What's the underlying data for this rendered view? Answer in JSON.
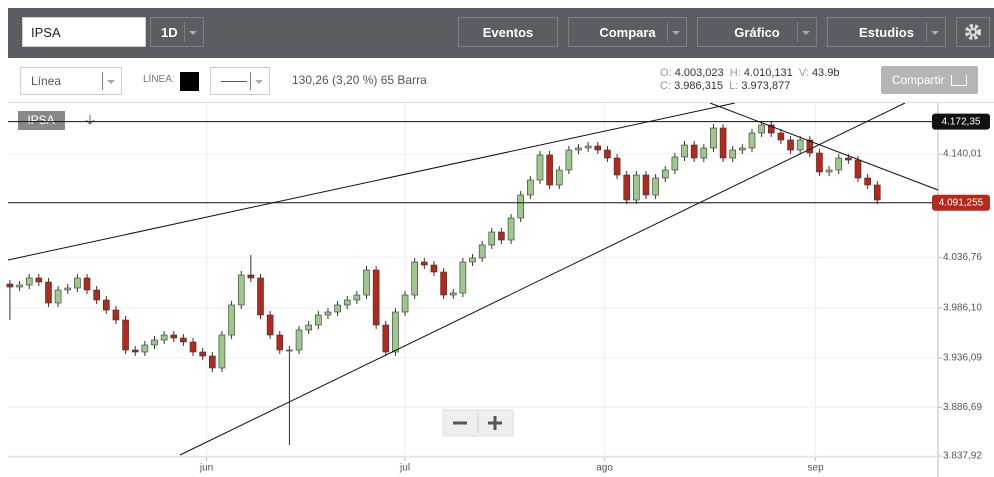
{
  "toolbar": {
    "symbol": "IPSA",
    "interval": "1D",
    "buttons": [
      "Eventos",
      "Compara",
      "Gráfico",
      "Estudios"
    ]
  },
  "options": {
    "chart_style": "Línea",
    "line_label": "LÍNEA:",
    "change": "130,26 (3,20 %) 65 Barra",
    "share": "Compartir"
  },
  "quote": {
    "o_label": "O:",
    "o": "4.003,023",
    "h_label": "H:",
    "h": "4.010,131",
    "v_label": "V:",
    "v": "43.9b",
    "c_label": "C:",
    "c": "3.986,315",
    "l_label": "L:",
    "l": "3.973,877"
  },
  "chart_data": {
    "type": "candlestick",
    "symbol": "IPSA",
    "open": [
      4010,
      4007,
      4009,
      4016,
      4012,
      3991,
      4004,
      4006,
      4016,
      4004,
      3994,
      3984,
      3974,
      3944,
      3942,
      3949,
      3954,
      3959,
      3956,
      3952,
      3942,
      3938,
      3926,
      3959,
      3989,
      4019,
      4016,
      3979,
      3959,
      3944,
      3944,
      3964,
      3969,
      3979,
      3982,
      3989,
      3994,
      3999,
      4024,
      3969,
      3942,
      3982,
      3999,
      4032,
      4029,
      4022,
      3999,
      4001,
      4032,
      4036,
      4049,
      4062,
      4054,
      4076,
      4099,
      4114,
      4139,
      4109,
      4124,
      4144,
      4146,
      4148,
      4144,
      4136,
      4119,
      4094,
      4119,
      4099,
      4116,
      4124,
      4137,
      4149,
      4136,
      4146,
      4166,
      4136,
      4144,
      4146,
      4161,
      4169,
      4161,
      4154,
      4144,
      4154,
      4141,
      4122,
      4124,
      4136,
      4134,
      4116,
      4109
    ],
    "high": [
      4014,
      4013,
      4020,
      4020,
      4016,
      4008,
      4010,
      4020,
      4020,
      4008,
      3998,
      3988,
      3978,
      3948,
      3953,
      3958,
      3963,
      3963,
      3960,
      3956,
      3946,
      3942,
      3963,
      3993,
      4023,
      4039,
      4020,
      3983,
      3963,
      3948,
      3968,
      3973,
      3983,
      3986,
      3993,
      3998,
      4003,
      4028,
      4028,
      3973,
      3986,
      4003,
      4036,
      4036,
      4033,
      4026,
      4005,
      4036,
      4040,
      4053,
      4066,
      4066,
      4080,
      4103,
      4118,
      4143,
      4143,
      4128,
      4148,
      4150,
      4152,
      4152,
      4148,
      4140,
      4123,
      4123,
      4123,
      4120,
      4128,
      4141,
      4153,
      4153,
      4150,
      4170,
      4170,
      4148,
      4150,
      4165,
      4173,
      4173,
      4165,
      4158,
      4158,
      4158,
      4145,
      4128,
      4140,
      4140,
      4138,
      4120,
      4113
    ],
    "low": [
      3974,
      4003,
      4005,
      4008,
      3987,
      3987,
      4000,
      4002,
      4000,
      3990,
      3980,
      3970,
      3940,
      3938,
      3938,
      3945,
      3950,
      3952,
      3948,
      3938,
      3934,
      3922,
      3922,
      3955,
      3985,
      4012,
      3975,
      3955,
      3940,
      3849,
      3940,
      3960,
      3965,
      3975,
      3978,
      3985,
      3990,
      3995,
      3965,
      3938,
      3938,
      3978,
      3995,
      4025,
      4018,
      3995,
      3995,
      3997,
      4028,
      4032,
      4045,
      4050,
      4050,
      4072,
      4095,
      4110,
      4105,
      4105,
      4120,
      4140,
      4142,
      4140,
      4132,
      4115,
      4090,
      4090,
      4095,
      4095,
      4112,
      4120,
      4133,
      4132,
      4132,
      4142,
      4132,
      4132,
      4140,
      4142,
      4157,
      4157,
      4150,
      4140,
      4140,
      4137,
      4118,
      4118,
      4120,
      4130,
      4112,
      4105,
      4090
    ],
    "close": [
      4007,
      4009,
      4016,
      4012,
      3991,
      4004,
      4006,
      4016,
      4004,
      3994,
      3984,
      3974,
      3944,
      3942,
      3949,
      3954,
      3959,
      3956,
      3952,
      3942,
      3938,
      3926,
      3959,
      3989,
      4019,
      4016,
      3979,
      3959,
      3944,
      3944,
      3964,
      3969,
      3979,
      3982,
      3989,
      3994,
      3999,
      4024,
      3969,
      3942,
      3982,
      3999,
      4032,
      4029,
      4022,
      3999,
      4001,
      4032,
      4036,
      4049,
      4062,
      4054,
      4076,
      4099,
      4114,
      4139,
      4109,
      4124,
      4144,
      4146,
      4148,
      4144,
      4136,
      4119,
      4094,
      4119,
      4099,
      4116,
      4124,
      4137,
      4149,
      4136,
      4146,
      4166,
      4136,
      4144,
      4146,
      4161,
      4169,
      4161,
      4154,
      4144,
      4154,
      4141,
      4122,
      4124,
      4136,
      4134,
      4116,
      4109,
      4094
    ],
    "up_color": "#9cc98a",
    "down_color": "#b5281a",
    "xlim": [
      -0.2,
      96.3
    ],
    "xticks": [
      {
        "value": 20.4,
        "label": "jun"
      },
      {
        "value": 41,
        "label": "jul"
      },
      {
        "value": 61.7,
        "label": "ago"
      },
      {
        "value": 83.6,
        "label": "sep"
      }
    ],
    "ylim": [
      3817,
      4191
    ],
    "yticks": [
      {
        "value": 4140.01,
        "label": "4.140,01"
      },
      {
        "value": 4036.76,
        "label": "4.036,76"
      },
      {
        "value": 3986.1,
        "label": "3.986,10"
      },
      {
        "value": 3936.09,
        "label": "3.936,09"
      },
      {
        "value": 3886.69,
        "label": "3.886,69"
      },
      {
        "value": 3837.92,
        "label": "3.837,92"
      }
    ],
    "levels": [
      {
        "value": 4172.35,
        "label": "4.172,35",
        "color": "#111111"
      },
      {
        "value": 4091.255,
        "label": "4.091,255",
        "color": "#b5281a"
      }
    ],
    "grid": true
  }
}
